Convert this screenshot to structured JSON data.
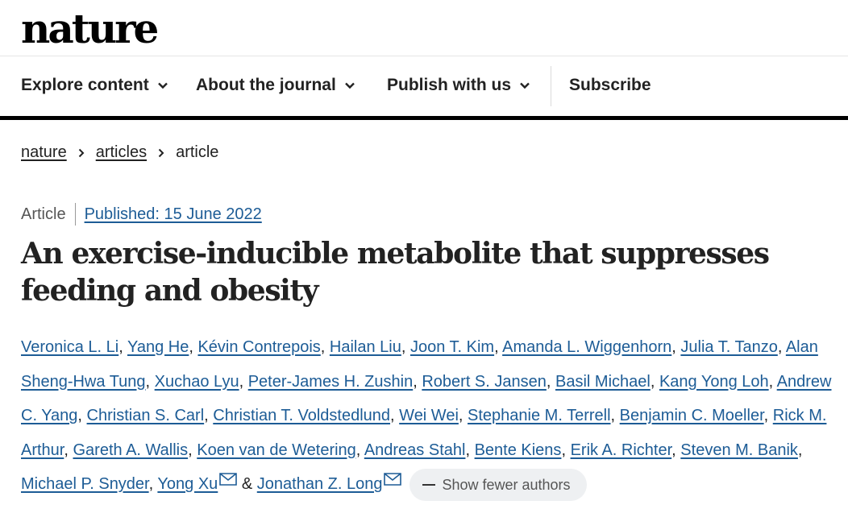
{
  "brand": {
    "logo": "nature"
  },
  "nav": {
    "items": [
      {
        "label": "Explore content",
        "has_dropdown": true
      },
      {
        "label": "About the journal",
        "has_dropdown": true
      },
      {
        "label": "Publish with us",
        "has_dropdown": true
      }
    ],
    "subscribe": "Subscribe"
  },
  "breadcrumb": {
    "items": [
      "nature",
      "articles"
    ],
    "current": "article"
  },
  "article": {
    "type": "Article",
    "published": "Published: 15 June 2022",
    "title": "An exercise-inducible metabolite that suppresses feeding and obesity",
    "authors": [
      "Veronica L. Li",
      "Yang He",
      "Kévin Contrepois",
      "Hailan Liu",
      "Joon T. Kim",
      "Amanda L. Wiggenhorn",
      "Julia T. Tanzo",
      "Alan Sheng-Hwa Tung",
      "Xuchao Lyu",
      "Peter-James H. Zushin",
      "Robert S. Jansen",
      "Basil Michael",
      "Kang Yong Loh",
      "Andrew C. Yang",
      "Christian S. Carl",
      "Christian T. Voldstedlund",
      "Wei Wei",
      "Stephanie M. Terrell",
      "Benjamin C. Moeller",
      "Rick M. Arthur",
      "Gareth A. Wallis",
      "Koen van de Wetering",
      "Andreas Stahl",
      "Bente Kiens",
      "Erik A. Richter",
      "Steven M. Banik",
      "Michael P. Snyder",
      "Yong Xu",
      "Jonathan Z. Long"
    ],
    "and_sign": "&",
    "show_fewer": "Show fewer authors"
  },
  "colors": {
    "link": "#1d5c96",
    "text": "#222222",
    "nav_bar": "#000000"
  }
}
